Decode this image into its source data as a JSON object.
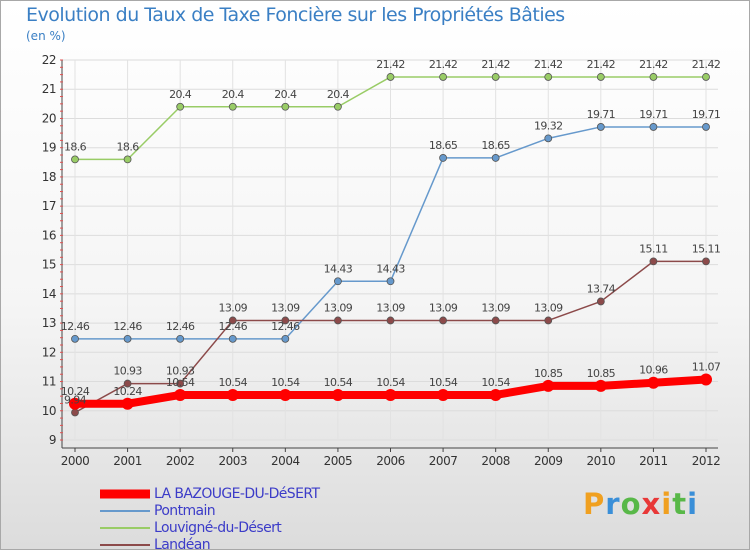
{
  "title": "Evolution du Taux de Taxe Foncière sur les Propriétés Bâties",
  "unit": "(en %)",
  "logo": {
    "letters": [
      "P",
      "r",
      "o",
      "x",
      "i",
      "t",
      "i"
    ],
    "colors": [
      "#f0a020",
      "#3a8fd8",
      "#58b848",
      "#e83838",
      "#f0a020",
      "#58b848",
      "#3a8fd8"
    ]
  },
  "chart_data": {
    "type": "line",
    "title": "Evolution du Taux de Taxe Foncière sur les Propriétés Bâties",
    "ylabel": "(en %)",
    "xlabel": "",
    "ylim": [
      9,
      22
    ],
    "yticks": [
      9,
      10,
      11,
      12,
      13,
      14,
      15,
      16,
      17,
      18,
      19,
      20,
      21,
      22
    ],
    "categories": [
      "2000",
      "2001",
      "2002",
      "2003",
      "2004",
      "2005",
      "2006",
      "2007",
      "2008",
      "2009",
      "2010",
      "2011",
      "2012"
    ],
    "series": [
      {
        "name": "LA BAZOUGE-DU-DéSERT",
        "color": "#ff0000",
        "values": [
          10.24,
          10.24,
          10.54,
          10.54,
          10.54,
          10.54,
          10.54,
          10.54,
          10.54,
          10.85,
          10.85,
          10.96,
          11.07
        ],
        "labels": [
          "10.24",
          "10.24",
          "10.54",
          "10.54",
          "10.54",
          "10.54",
          "10.54",
          "10.54",
          "10.54",
          "10.85",
          "10.85",
          "10.96",
          "11.07"
        ]
      },
      {
        "name": "Pontmain",
        "color": "#6699cc",
        "values": [
          12.46,
          12.46,
          12.46,
          12.46,
          12.46,
          14.43,
          14.43,
          18.65,
          18.65,
          19.32,
          19.71,
          19.71,
          19.71
        ],
        "labels": [
          "12.46",
          "12.46",
          "12.46",
          "12.46",
          "12.46",
          "14.43",
          "14.43",
          "18.65",
          "18.65",
          "19.32",
          "19.71",
          "19.71",
          "19.71"
        ]
      },
      {
        "name": "Louvigné-du-Désert",
        "color": "#99cc66",
        "values": [
          18.6,
          18.6,
          20.4,
          20.4,
          20.4,
          20.4,
          21.42,
          21.42,
          21.42,
          21.42,
          21.42,
          21.42,
          21.42
        ],
        "labels": [
          "18.6",
          "18.6",
          "20.4",
          "20.4",
          "20.4",
          "20.4",
          "21.42",
          "21.42",
          "21.42",
          "21.42",
          "21.42",
          "21.42",
          "21.42"
        ]
      },
      {
        "name": "Landéan",
        "color": "#8c4a4a",
        "values": [
          9.94,
          10.93,
          10.93,
          13.09,
          13.09,
          13.09,
          13.09,
          13.09,
          13.09,
          13.09,
          13.74,
          15.11,
          15.11
        ],
        "labels": [
          "9.94",
          "10.93",
          "10.93",
          "13.09",
          "13.09",
          "13.09",
          "13.09",
          "13.09",
          "13.09",
          "13.09",
          "13.74",
          "15.11",
          "15.11"
        ]
      }
    ]
  }
}
